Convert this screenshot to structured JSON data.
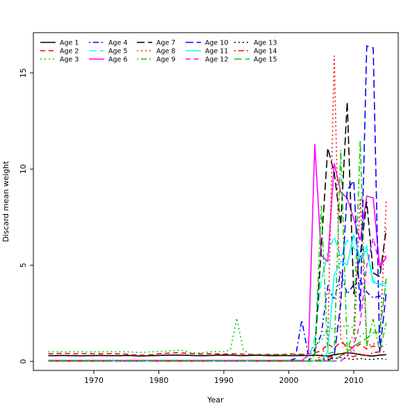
{
  "figure": {
    "xlabel": "Year",
    "ylabel": "Discard mean weight",
    "background": "#ffffff",
    "box_color": "#000000"
  },
  "chart_data": {
    "type": "line",
    "title": "",
    "xlabel": "Year",
    "ylabel": "Discard mean weight",
    "x_ticks": [
      1970,
      1980,
      1990,
      2000,
      2010
    ],
    "y_ticks": [
      0,
      5,
      10,
      15
    ],
    "xlim": [
      1960.9,
      2017.1
    ],
    "ylim": [
      -0.47,
      17.53
    ],
    "grid": false,
    "legend_position": "top-left",
    "legend_columns": 5,
    "x": [
      1963,
      1964,
      1965,
      1966,
      1967,
      1968,
      1969,
      1970,
      1971,
      1972,
      1973,
      1974,
      1975,
      1976,
      1977,
      1978,
      1979,
      1980,
      1981,
      1982,
      1983,
      1984,
      1985,
      1986,
      1987,
      1988,
      1989,
      1990,
      1991,
      1992,
      1993,
      1994,
      1995,
      1996,
      1997,
      1998,
      1999,
      2000,
      2001,
      2002,
      2003,
      2004,
      2005,
      2006,
      2007,
      2008,
      2009,
      2010,
      2011,
      2012,
      2013,
      2014,
      2015
    ],
    "series": [
      {
        "name": "Age 1",
        "color": "#000000",
        "linetype": "solid",
        "values": [
          0.3,
          0.3,
          0.31,
          0.3,
          0.3,
          0.29,
          0.3,
          0.3,
          0.31,
          0.3,
          0.3,
          0.3,
          0.31,
          0.3,
          0.28,
          0.29,
          0.3,
          0.31,
          0.32,
          0.33,
          0.33,
          0.32,
          0.31,
          0.3,
          0.3,
          0.31,
          0.32,
          0.33,
          0.32,
          0.31,
          0.3,
          0.31,
          0.32,
          0.31,
          0.3,
          0.3,
          0.31,
          0.3,
          0.3,
          0.31,
          0.3,
          0.32,
          0.3,
          0.28,
          0.35,
          0.4,
          0.45,
          0.42,
          0.35,
          0.3,
          0.28,
          0.33,
          0.35
        ]
      },
      {
        "name": "Age 2",
        "color": "#FF0000",
        "linetype": "dashed",
        "values": [
          0.4,
          0.41,
          0.42,
          0.41,
          0.4,
          0.4,
          0.41,
          0.4,
          0.4,
          0.41,
          0.4,
          0.39,
          0.38,
          0.34,
          0.33,
          0.33,
          0.35,
          0.4,
          0.42,
          0.44,
          0.45,
          0.43,
          0.41,
          0.39,
          0.38,
          0.4,
          0.39,
          0.38,
          0.39,
          0.4,
          0.38,
          0.36,
          0.35,
          0.36,
          0.37,
          0.36,
          0.35,
          0.4,
          0.38,
          0.37,
          0.4,
          0.45,
          0.55,
          0.9,
          0.7,
          1.0,
          0.8,
          0.7,
          0.9,
          0.65,
          0.8,
          0.7,
          0.9
        ]
      },
      {
        "name": "Age 3",
        "color": "#00CD00",
        "linetype": "dotted",
        "values": [
          0.5,
          0.5,
          0.51,
          0.5,
          0.5,
          0.5,
          0.49,
          0.5,
          0.5,
          0.51,
          0.5,
          0.5,
          0.5,
          0.48,
          0.47,
          0.48,
          0.5,
          0.52,
          0.53,
          0.56,
          0.58,
          0.55,
          0.45,
          0.44,
          0.46,
          0.5,
          0.52,
          0.5,
          0.6,
          2.25,
          0.6,
          0.38,
          0.35,
          0.34,
          0.35,
          0.36,
          0.35,
          0.34,
          0.35,
          0.36,
          0.4,
          0.8,
          1.1,
          1.75,
          1.7,
          1.8,
          1.85,
          1.75,
          1.3,
          1.6,
          1.6,
          1.6,
          1.9
        ]
      },
      {
        "name": "Age 4",
        "color": "#0000FF",
        "linetype": "dotdash",
        "values": [
          0.02,
          0.02,
          0.02,
          0.02,
          0.02,
          0.02,
          0.02,
          0.02,
          0.02,
          0.02,
          0.02,
          0.02,
          0.02,
          0.02,
          0.02,
          0.02,
          0.02,
          0.02,
          0.02,
          0.02,
          0.02,
          0.02,
          0.02,
          0.02,
          0.02,
          0.02,
          0.02,
          0.02,
          0.02,
          0.02,
          0.02,
          0.02,
          0.02,
          0.02,
          0.02,
          0.02,
          0.02,
          0.02,
          0.15,
          2.15,
          0.3,
          0.6,
          1.4,
          3.9,
          3.2,
          4.6,
          3.5,
          4.0,
          4.2,
          3.6,
          3.3,
          3.4,
          3.2
        ]
      },
      {
        "name": "Age 5",
        "color": "#00FFFF",
        "linetype": "longdash",
        "values": [
          0.02,
          0.02,
          0.02,
          0.02,
          0.02,
          0.02,
          0.02,
          0.02,
          0.02,
          0.02,
          0.02,
          0.02,
          0.02,
          0.02,
          0.02,
          0.02,
          0.02,
          0.02,
          0.02,
          0.02,
          0.02,
          0.02,
          0.02,
          0.02,
          0.02,
          0.02,
          0.02,
          0.02,
          0.02,
          0.02,
          0.02,
          0.02,
          0.02,
          0.02,
          0.02,
          0.02,
          0.02,
          0.02,
          0.02,
          0.02,
          0.02,
          1.2,
          4.2,
          5.6,
          6.5,
          5.4,
          6.3,
          5.9,
          5.2,
          6.0,
          4.2,
          4.0,
          4.1
        ]
      },
      {
        "name": "Age 6",
        "color": "#FF00FF",
        "linetype": "solid",
        "values": [
          0.05,
          0.05,
          0.05,
          0.05,
          0.05,
          0.05,
          0.05,
          0.05,
          0.05,
          0.05,
          0.05,
          0.05,
          0.05,
          0.05,
          0.05,
          0.05,
          0.05,
          0.05,
          0.05,
          0.05,
          0.05,
          0.05,
          0.05,
          0.05,
          0.05,
          0.05,
          0.05,
          0.05,
          0.05,
          0.05,
          0.05,
          0.05,
          0.05,
          0.05,
          0.05,
          0.05,
          0.05,
          0.05,
          0.05,
          0.05,
          0.3,
          11.3,
          5.5,
          5.2,
          10.3,
          8.8,
          8.5,
          7.4,
          6.3,
          8.6,
          8.5,
          4.9,
          5.4
        ]
      },
      {
        "name": "Age 7",
        "color": "#000000",
        "linetype": "longdash",
        "values": [
          0.02,
          0.02,
          0.02,
          0.02,
          0.02,
          0.02,
          0.02,
          0.02,
          0.02,
          0.02,
          0.02,
          0.02,
          0.02,
          0.02,
          0.02,
          0.02,
          0.02,
          0.02,
          0.02,
          0.02,
          0.02,
          0.02,
          0.02,
          0.02,
          0.02,
          0.02,
          0.02,
          0.02,
          0.02,
          0.02,
          0.02,
          0.02,
          0.02,
          0.02,
          0.02,
          0.02,
          0.02,
          0.02,
          0.02,
          0.02,
          0.02,
          0.4,
          6.0,
          11.1,
          9.8,
          7.1,
          13.5,
          3.5,
          5.5,
          8.3,
          4.6,
          4.4,
          6.9
        ]
      },
      {
        "name": "Age 8",
        "color": "#FF0000",
        "linetype": "dotted",
        "values": [
          0.02,
          0.02,
          0.02,
          0.02,
          0.02,
          0.02,
          0.02,
          0.02,
          0.02,
          0.02,
          0.02,
          0.02,
          0.02,
          0.02,
          0.02,
          0.02,
          0.02,
          0.02,
          0.02,
          0.02,
          0.02,
          0.02,
          0.02,
          0.02,
          0.02,
          0.02,
          0.02,
          0.02,
          0.02,
          0.02,
          0.02,
          0.02,
          0.02,
          0.02,
          0.02,
          0.02,
          0.02,
          0.02,
          0.02,
          0.02,
          0.02,
          0.02,
          0.3,
          1.0,
          15.9,
          1.2,
          0.6,
          0.5,
          8.5,
          0.8,
          0.9,
          1.0,
          8.3
        ]
      },
      {
        "name": "Age 9",
        "color": "#00CD00",
        "linetype": "dotdash",
        "values": [
          0.02,
          0.02,
          0.02,
          0.02,
          0.02,
          0.02,
          0.02,
          0.02,
          0.02,
          0.02,
          0.02,
          0.02,
          0.02,
          0.02,
          0.02,
          0.02,
          0.02,
          0.02,
          0.02,
          0.02,
          0.02,
          0.02,
          0.02,
          0.02,
          0.02,
          0.02,
          0.02,
          0.02,
          0.02,
          0.02,
          0.02,
          0.02,
          0.02,
          0.02,
          0.02,
          0.02,
          0.02,
          0.02,
          0.02,
          0.02,
          0.02,
          0.3,
          8.1,
          0.4,
          0.5,
          11.0,
          0.6,
          1.5,
          11.5,
          0.8,
          2.2,
          0.5,
          2.0
        ]
      },
      {
        "name": "Age 10",
        "color": "#0000FF",
        "linetype": "longdash",
        "values": [
          0.02,
          0.02,
          0.02,
          0.02,
          0.02,
          0.02,
          0.02,
          0.02,
          0.02,
          0.02,
          0.02,
          0.02,
          0.02,
          0.02,
          0.02,
          0.02,
          0.02,
          0.02,
          0.02,
          0.02,
          0.02,
          0.02,
          0.02,
          0.02,
          0.02,
          0.02,
          0.02,
          0.02,
          0.02,
          0.02,
          0.02,
          0.02,
          0.02,
          0.02,
          0.02,
          0.02,
          0.02,
          0.02,
          0.02,
          0.02,
          0.02,
          0.02,
          0.02,
          0.02,
          0.3,
          3.0,
          8.9,
          9.4,
          2.6,
          16.4,
          16.3,
          0.5,
          3.6
        ]
      },
      {
        "name": "Age 11",
        "color": "#00FFFF",
        "linetype": "solid",
        "values": [
          0.02,
          0.02,
          0.02,
          0.02,
          0.02,
          0.02,
          0.02,
          0.02,
          0.02,
          0.02,
          0.02,
          0.02,
          0.02,
          0.02,
          0.02,
          0.02,
          0.02,
          0.02,
          0.02,
          0.02,
          0.02,
          0.02,
          0.02,
          0.02,
          0.02,
          0.02,
          0.02,
          0.02,
          0.02,
          0.02,
          0.02,
          0.02,
          0.02,
          0.02,
          0.02,
          0.02,
          0.02,
          0.02,
          0.02,
          0.02,
          0.02,
          0.02,
          0.02,
          0.5,
          4.5,
          5.2,
          5.0,
          6.6,
          5.3,
          5.8,
          4.1,
          4.0,
          3.9
        ]
      },
      {
        "name": "Age 12",
        "color": "#FF00FF",
        "linetype": "dashed",
        "values": [
          0.02,
          0.02,
          0.02,
          0.02,
          0.02,
          0.02,
          0.02,
          0.02,
          0.02,
          0.02,
          0.02,
          0.02,
          0.02,
          0.02,
          0.02,
          0.02,
          0.02,
          0.02,
          0.02,
          0.02,
          0.02,
          0.02,
          0.02,
          0.02,
          0.02,
          0.02,
          0.02,
          0.02,
          0.02,
          0.02,
          0.02,
          0.02,
          0.02,
          0.02,
          0.02,
          0.02,
          0.02,
          0.02,
          0.02,
          0.02,
          0.02,
          0.02,
          0.02,
          0.02,
          0.02,
          0.02,
          0.3,
          0.8,
          2.0,
          5.0,
          6.4,
          5.0,
          5.5
        ]
      },
      {
        "name": "Age 13",
        "color": "#000000",
        "linetype": "dotted",
        "values": [
          0.02,
          0.02,
          0.02,
          0.02,
          0.02,
          0.02,
          0.02,
          0.02,
          0.02,
          0.02,
          0.02,
          0.02,
          0.02,
          0.02,
          0.02,
          0.02,
          0.02,
          0.02,
          0.02,
          0.02,
          0.02,
          0.02,
          0.02,
          0.02,
          0.02,
          0.02,
          0.02,
          0.02,
          0.02,
          0.02,
          0.02,
          0.02,
          0.02,
          0.02,
          0.02,
          0.02,
          0.02,
          0.02,
          0.02,
          0.02,
          0.02,
          0.02,
          0.05,
          0.1,
          0.15,
          0.2,
          0.15,
          0.1,
          0.15,
          0.1,
          0.1,
          0.15,
          0.1
        ]
      },
      {
        "name": "Age 14",
        "color": "#FF0000",
        "linetype": "dotdash",
        "values": [
          0.02,
          0.02,
          0.02,
          0.02,
          0.02,
          0.02,
          0.02,
          0.02,
          0.02,
          0.02,
          0.02,
          0.02,
          0.02,
          0.02,
          0.02,
          0.02,
          0.02,
          0.02,
          0.02,
          0.02,
          0.02,
          0.02,
          0.02,
          0.02,
          0.02,
          0.02,
          0.02,
          0.02,
          0.02,
          0.02,
          0.02,
          0.02,
          0.02,
          0.02,
          0.02,
          0.02,
          0.02,
          0.02,
          0.02,
          0.02,
          0.02,
          0.02,
          0.1,
          0.2,
          0.3,
          0.4,
          0.3,
          0.25,
          0.4,
          0.3,
          0.45,
          0.5,
          0.5
        ]
      },
      {
        "name": "Age 15",
        "color": "#00CD00",
        "linetype": "longdash",
        "values": [
          0.02,
          0.02,
          0.02,
          0.02,
          0.02,
          0.02,
          0.02,
          0.02,
          0.02,
          0.02,
          0.02,
          0.02,
          0.02,
          0.02,
          0.02,
          0.02,
          0.02,
          0.02,
          0.02,
          0.02,
          0.02,
          0.02,
          0.02,
          0.02,
          0.02,
          0.02,
          0.02,
          0.02,
          0.02,
          0.02,
          0.02,
          0.02,
          0.02,
          0.02,
          0.02,
          0.02,
          0.02,
          0.02,
          0.02,
          0.02,
          0.02,
          0.02,
          0.02,
          0.02,
          0.02,
          0.3,
          0.5,
          0.8,
          1.0,
          1.2,
          1.5,
          1.5,
          4.3
        ]
      }
    ]
  }
}
